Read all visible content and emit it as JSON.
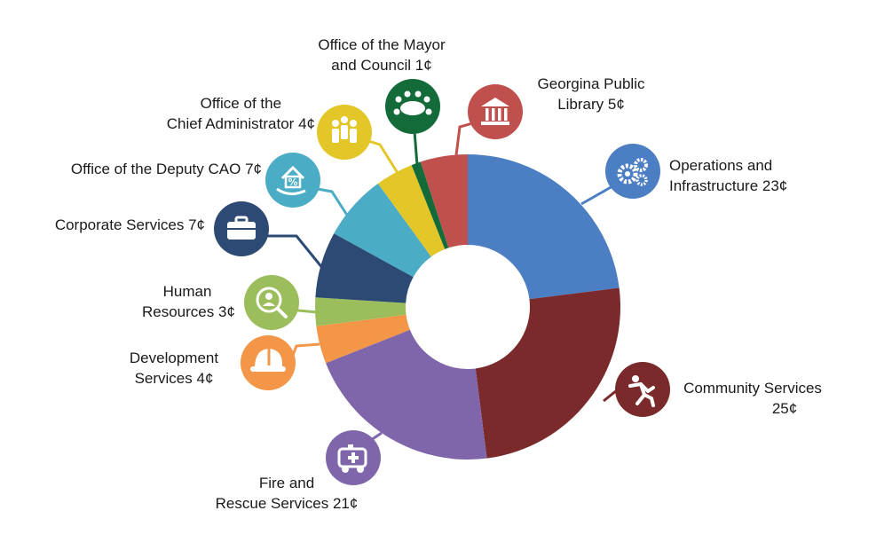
{
  "chart_data": {
    "type": "pie",
    "subtype": "donut",
    "unit": "¢",
    "legend": "none",
    "slices": [
      {
        "line1": "Operations and",
        "line2": "Infrastructure",
        "value": 23,
        "value_label": "23¢",
        "color": "#4c7ec3",
        "icon": "gears-icon"
      },
      {
        "line1": "Community Services",
        "line2": "",
        "value": 25,
        "value_label": "25¢",
        "color": "#7a2a2a",
        "icon": "running-person-icon"
      },
      {
        "line1": "Fire and",
        "line2": "Rescue Services",
        "value": 21,
        "value_label": "21¢",
        "color": "#7f66aa",
        "icon": "ambulance-icon"
      },
      {
        "line1": "Development",
        "line2": "Services",
        "value": 4,
        "value_label": "4¢",
        "color": "#f39648",
        "icon": "hard-hat-icon"
      },
      {
        "line1": "Human",
        "line2": "Resources",
        "value": 3,
        "value_label": "3¢",
        "color": "#9bbd5c",
        "icon": "person-search-icon"
      },
      {
        "line1": "Corporate Services",
        "line2": "",
        "value": 7,
        "value_label": "7¢",
        "color": "#2c4a73",
        "icon": "briefcase-icon"
      },
      {
        "line1": "Office of the Deputy CAO",
        "line2": "",
        "value": 7,
        "value_label": "7¢",
        "color": "#4bacc6",
        "icon": "house-percent-icon"
      },
      {
        "line1": "Office of the",
        "line2": "Chief Administrator",
        "value": 4,
        "value_label": "4¢",
        "color": "#e3c728",
        "icon": "people-group-icon"
      },
      {
        "line1": "Office of the Mayor",
        "line2": "and Council",
        "value": 1,
        "value_label": "1¢",
        "color": "#146b3a",
        "icon": "council-table-icon"
      },
      {
        "line1": "Georgina Public",
        "line2": "Library",
        "value": 5,
        "value_label": "5¢",
        "color": "#c0504d",
        "icon": "library-icon"
      }
    ]
  }
}
